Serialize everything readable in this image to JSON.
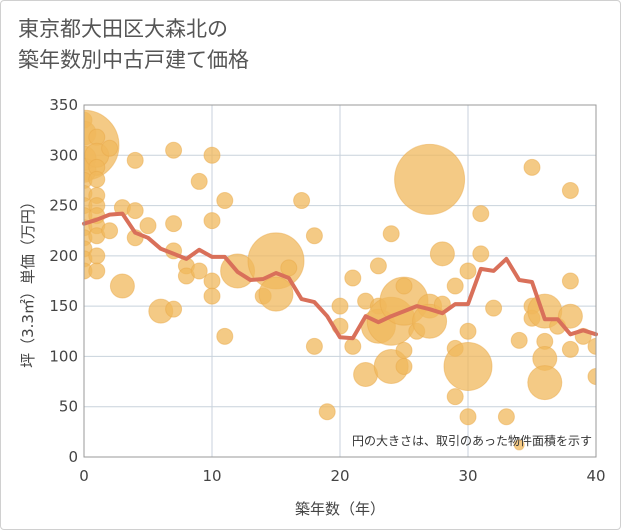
{
  "title_lines": [
    "東京都大田区大森北の",
    "築年数別中古戸建て価格"
  ],
  "chart_data": {
    "type": "scatter",
    "xlabel": "築年数（年）",
    "ylabel": "坪（3.3㎡）単価（万円）",
    "xlim": [
      0,
      40
    ],
    "ylim": [
      0,
      350
    ],
    "xticks": [
      0,
      10,
      20,
      30,
      40
    ],
    "yticks": [
      0,
      50,
      100,
      150,
      200,
      250,
      300,
      350
    ],
    "grid": true,
    "note": "円の大きさは、取引のあった物件面積を示す",
    "colors": {
      "bubble": "#f0b85c",
      "line": "#d9705a",
      "grid": "#c8d2dc",
      "plot_border": "#999999"
    },
    "series": [
      {
        "type": "scatter",
        "points": [
          {
            "x": 0,
            "y": 335,
            "s": 2
          },
          {
            "x": 0,
            "y": 322,
            "s": 3
          },
          {
            "x": 0,
            "y": 310,
            "s": 7
          },
          {
            "x": 0,
            "y": 297,
            "s": 3
          },
          {
            "x": 0,
            "y": 285,
            "s": 3
          },
          {
            "x": 0,
            "y": 275,
            "s": 2
          },
          {
            "x": 0,
            "y": 262,
            "s": 2
          },
          {
            "x": 0,
            "y": 250,
            "s": 2
          },
          {
            "x": 0,
            "y": 240,
            "s": 2
          },
          {
            "x": 0,
            "y": 228,
            "s": 2
          },
          {
            "x": 0,
            "y": 218,
            "s": 2
          },
          {
            "x": 0,
            "y": 207,
            "s": 2
          },
          {
            "x": 0,
            "y": 197,
            "s": 2
          },
          {
            "x": 0,
            "y": 185,
            "s": 2
          },
          {
            "x": 1,
            "y": 318,
            "s": 2
          },
          {
            "x": 1,
            "y": 300,
            "s": 3
          },
          {
            "x": 1,
            "y": 288,
            "s": 2
          },
          {
            "x": 1,
            "y": 276,
            "s": 2
          },
          {
            "x": 1,
            "y": 260,
            "s": 2
          },
          {
            "x": 1,
            "y": 250,
            "s": 2
          },
          {
            "x": 1,
            "y": 240,
            "s": 2
          },
          {
            "x": 1,
            "y": 230,
            "s": 2
          },
          {
            "x": 1,
            "y": 220,
            "s": 2
          },
          {
            "x": 1,
            "y": 200,
            "s": 2
          },
          {
            "x": 1,
            "y": 185,
            "s": 2
          },
          {
            "x": 2,
            "y": 307,
            "s": 2
          },
          {
            "x": 2,
            "y": 225,
            "s": 2
          },
          {
            "x": 3,
            "y": 248,
            "s": 2
          },
          {
            "x": 3,
            "y": 170,
            "s": 3
          },
          {
            "x": 4,
            "y": 295,
            "s": 2
          },
          {
            "x": 4,
            "y": 245,
            "s": 2
          },
          {
            "x": 4,
            "y": 218,
            "s": 2
          },
          {
            "x": 5,
            "y": 230,
            "s": 2
          },
          {
            "x": 6,
            "y": 145,
            "s": 3
          },
          {
            "x": 7,
            "y": 305,
            "s": 2
          },
          {
            "x": 7,
            "y": 232,
            "s": 2
          },
          {
            "x": 7,
            "y": 205,
            "s": 2
          },
          {
            "x": 7,
            "y": 147,
            "s": 2
          },
          {
            "x": 8,
            "y": 190,
            "s": 2
          },
          {
            "x": 8,
            "y": 180,
            "s": 2
          },
          {
            "x": 9,
            "y": 274,
            "s": 2
          },
          {
            "x": 9,
            "y": 185,
            "s": 2
          },
          {
            "x": 10,
            "y": 300,
            "s": 2
          },
          {
            "x": 10,
            "y": 235,
            "s": 2
          },
          {
            "x": 10,
            "y": 175,
            "s": 2
          },
          {
            "x": 10,
            "y": 160,
            "s": 2
          },
          {
            "x": 11,
            "y": 255,
            "s": 2
          },
          {
            "x": 11,
            "y": 120,
            "s": 2
          },
          {
            "x": 12,
            "y": 185,
            "s": 4
          },
          {
            "x": 14,
            "y": 160,
            "s": 2
          },
          {
            "x": 15,
            "y": 195,
            "s": 6
          },
          {
            "x": 15,
            "y": 162,
            "s": 4
          },
          {
            "x": 16,
            "y": 188,
            "s": 2
          },
          {
            "x": 17,
            "y": 255,
            "s": 2
          },
          {
            "x": 18,
            "y": 220,
            "s": 2
          },
          {
            "x": 18,
            "y": 110,
            "s": 2
          },
          {
            "x": 19,
            "y": 45,
            "s": 2
          },
          {
            "x": 20,
            "y": 150,
            "s": 2
          },
          {
            "x": 20,
            "y": 130,
            "s": 2
          },
          {
            "x": 21,
            "y": 178,
            "s": 2
          },
          {
            "x": 21,
            "y": 110,
            "s": 2
          },
          {
            "x": 22,
            "y": 82,
            "s": 3
          },
          {
            "x": 22,
            "y": 155,
            "s": 2
          },
          {
            "x": 23,
            "y": 190,
            "s": 2
          },
          {
            "x": 23,
            "y": 150,
            "s": 2
          },
          {
            "x": 23,
            "y": 130,
            "s": 4
          },
          {
            "x": 24,
            "y": 222,
            "s": 2
          },
          {
            "x": 24,
            "y": 90,
            "s": 4
          },
          {
            "x": 24,
            "y": 135,
            "s": 5
          },
          {
            "x": 25,
            "y": 155,
            "s": 5
          },
          {
            "x": 25,
            "y": 170,
            "s": 2
          },
          {
            "x": 25,
            "y": 106,
            "s": 2
          },
          {
            "x": 25,
            "y": 90,
            "s": 2
          },
          {
            "x": 26,
            "y": 125,
            "s": 2
          },
          {
            "x": 27,
            "y": 276,
            "s": 7
          },
          {
            "x": 27,
            "y": 150,
            "s": 3
          },
          {
            "x": 27,
            "y": 135,
            "s": 4
          },
          {
            "x": 28,
            "y": 202,
            "s": 3
          },
          {
            "x": 28,
            "y": 152,
            "s": 2
          },
          {
            "x": 29,
            "y": 170,
            "s": 2
          },
          {
            "x": 29,
            "y": 108,
            "s": 2
          },
          {
            "x": 29,
            "y": 60,
            "s": 2
          },
          {
            "x": 30,
            "y": 185,
            "s": 2
          },
          {
            "x": 30,
            "y": 125,
            "s": 2
          },
          {
            "x": 30,
            "y": 90,
            "s": 5
          },
          {
            "x": 30,
            "y": 40,
            "s": 2
          },
          {
            "x": 31,
            "y": 242,
            "s": 2
          },
          {
            "x": 31,
            "y": 202,
            "s": 2
          },
          {
            "x": 32,
            "y": 148,
            "s": 2
          },
          {
            "x": 33,
            "y": 40,
            "s": 2
          },
          {
            "x": 34,
            "y": 12,
            "s": 1
          },
          {
            "x": 34,
            "y": 116,
            "s": 2
          },
          {
            "x": 35,
            "y": 288,
            "s": 2
          },
          {
            "x": 35,
            "y": 150,
            "s": 2
          },
          {
            "x": 35,
            "y": 138,
            "s": 2
          },
          {
            "x": 36,
            "y": 145,
            "s": 4
          },
          {
            "x": 36,
            "y": 115,
            "s": 2
          },
          {
            "x": 36,
            "y": 98,
            "s": 3
          },
          {
            "x": 36,
            "y": 74,
            "s": 4
          },
          {
            "x": 37,
            "y": 130,
            "s": 2
          },
          {
            "x": 38,
            "y": 265,
            "s": 2
          },
          {
            "x": 38,
            "y": 175,
            "s": 2
          },
          {
            "x": 38,
            "y": 140,
            "s": 3
          },
          {
            "x": 38,
            "y": 107,
            "s": 2
          },
          {
            "x": 39,
            "y": 120,
            "s": 2
          },
          {
            "x": 40,
            "y": 110,
            "s": 2
          },
          {
            "x": 40,
            "y": 80,
            "s": 2
          }
        ]
      },
      {
        "type": "line",
        "x": [
          0,
          1,
          2,
          3,
          4,
          5,
          6,
          7,
          8,
          9,
          10,
          11,
          12,
          13,
          14,
          15,
          16,
          17,
          18,
          19,
          20,
          21,
          22,
          23,
          24,
          25,
          26,
          27,
          28,
          29,
          30,
          31,
          32,
          33,
          34,
          35,
          36,
          37,
          38,
          39,
          40
        ],
        "values": [
          232,
          236,
          241,
          242,
          223,
          218,
          207,
          202,
          197,
          206,
          199,
          199,
          184,
          176,
          177,
          183,
          178,
          157,
          154,
          140,
          119,
          118,
          140,
          134,
          140,
          145,
          150,
          147,
          143,
          152,
          152,
          187,
          185,
          197,
          176,
          174,
          137,
          137,
          122,
          126,
          122
        ]
      }
    ]
  }
}
